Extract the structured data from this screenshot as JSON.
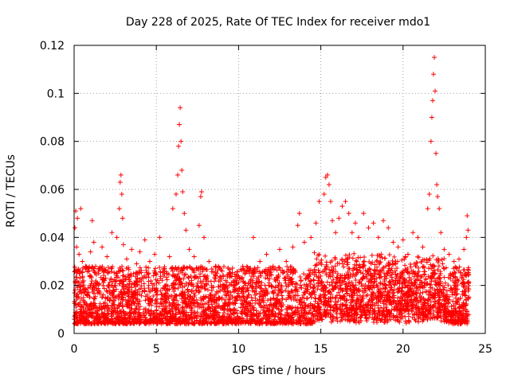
{
  "chart_data": {
    "type": "scatter",
    "title": "Day 228 of 2025, Rate Of TEC Index for receiver mdo1",
    "xlabel": "GPS time / hours",
    "ylabel": "ROTI / TECUs",
    "xlim": [
      0,
      25
    ],
    "ylim": [
      0,
      0.12
    ],
    "xticks": [
      "0",
      "5",
      "10",
      "15",
      "20",
      "25"
    ],
    "yticks": [
      "0",
      "0.02",
      "0.04",
      "0.06",
      "0.08",
      "0.1",
      "0.12"
    ],
    "grid": true,
    "marker": "plus",
    "color": "#ff0000",
    "series": [
      {
        "name": "ROTI",
        "points": [
          [
            0.05,
            0.044
          ],
          [
            0.1,
            0.051
          ],
          [
            0.15,
            0.036
          ],
          [
            0.2,
            0.048
          ],
          [
            0.3,
            0.033
          ],
          [
            0.4,
            0.052
          ],
          [
            0.5,
            0.03
          ],
          [
            0.7,
            0.028
          ],
          [
            1.0,
            0.034
          ],
          [
            1.1,
            0.047
          ],
          [
            1.2,
            0.038
          ],
          [
            1.5,
            0.025
          ],
          [
            1.7,
            0.036
          ],
          [
            2.0,
            0.032
          ],
          [
            2.3,
            0.042
          ],
          [
            2.6,
            0.04
          ],
          [
            2.75,
            0.052
          ],
          [
            2.8,
            0.063
          ],
          [
            2.85,
            0.066
          ],
          [
            2.9,
            0.058
          ],
          [
            2.95,
            0.048
          ],
          [
            3.0,
            0.037
          ],
          [
            3.2,
            0.031
          ],
          [
            3.5,
            0.035
          ],
          [
            3.8,
            0.029
          ],
          [
            4.0,
            0.034
          ],
          [
            4.3,
            0.039
          ],
          [
            4.6,
            0.03
          ],
          [
            4.9,
            0.033
          ],
          [
            5.2,
            0.04
          ],
          [
            5.5,
            0.027
          ],
          [
            5.8,
            0.032
          ],
          [
            6.0,
            0.052
          ],
          [
            6.2,
            0.058
          ],
          [
            6.3,
            0.066
          ],
          [
            6.35,
            0.078
          ],
          [
            6.4,
            0.087
          ],
          [
            6.45,
            0.094
          ],
          [
            6.5,
            0.08
          ],
          [
            6.55,
            0.068
          ],
          [
            6.6,
            0.059
          ],
          [
            6.7,
            0.05
          ],
          [
            6.8,
            0.043
          ],
          [
            7.0,
            0.035
          ],
          [
            7.3,
            0.032
          ],
          [
            7.6,
            0.045
          ],
          [
            7.7,
            0.057
          ],
          [
            7.75,
            0.059
          ],
          [
            7.9,
            0.04
          ],
          [
            8.2,
            0.03
          ],
          [
            8.6,
            0.028
          ],
          [
            9.0,
            0.026
          ],
          [
            9.5,
            0.025
          ],
          [
            10.0,
            0.024
          ],
          [
            10.5,
            0.026
          ],
          [
            10.9,
            0.04
          ],
          [
            11.3,
            0.03
          ],
          [
            11.7,
            0.033
          ],
          [
            12.1,
            0.028
          ],
          [
            12.5,
            0.035
          ],
          [
            12.9,
            0.03
          ],
          [
            13.3,
            0.036
          ],
          [
            13.6,
            0.045
          ],
          [
            13.7,
            0.05
          ],
          [
            14.0,
            0.038
          ],
          [
            14.4,
            0.04
          ],
          [
            14.7,
            0.046
          ],
          [
            14.9,
            0.055
          ],
          [
            15.2,
            0.058
          ],
          [
            15.3,
            0.065
          ],
          [
            15.4,
            0.066
          ],
          [
            15.5,
            0.062
          ],
          [
            15.6,
            0.055
          ],
          [
            15.7,
            0.047
          ],
          [
            15.9,
            0.042
          ],
          [
            16.1,
            0.048
          ],
          [
            16.3,
            0.053
          ],
          [
            16.5,
            0.055
          ],
          [
            16.7,
            0.05
          ],
          [
            16.9,
            0.042
          ],
          [
            17.1,
            0.046
          ],
          [
            17.3,
            0.04
          ],
          [
            17.6,
            0.05
          ],
          [
            17.9,
            0.044
          ],
          [
            18.2,
            0.046
          ],
          [
            18.5,
            0.04
          ],
          [
            18.8,
            0.047
          ],
          [
            19.1,
            0.044
          ],
          [
            19.4,
            0.038
          ],
          [
            19.7,
            0.036
          ],
          [
            20.0,
            0.039
          ],
          [
            20.3,
            0.033
          ],
          [
            20.6,
            0.042
          ],
          [
            20.9,
            0.04
          ],
          [
            21.2,
            0.036
          ],
          [
            21.5,
            0.052
          ],
          [
            21.6,
            0.058
          ],
          [
            21.7,
            0.08
          ],
          [
            21.75,
            0.09
          ],
          [
            21.8,
            0.097
          ],
          [
            21.85,
            0.108
          ],
          [
            21.9,
            0.115
          ],
          [
            21.95,
            0.101
          ],
          [
            22.0,
            0.075
          ],
          [
            22.05,
            0.062
          ],
          [
            22.1,
            0.057
          ],
          [
            22.2,
            0.052
          ],
          [
            22.3,
            0.042
          ],
          [
            22.5,
            0.035
          ],
          [
            22.8,
            0.033
          ],
          [
            23.1,
            0.03
          ],
          [
            23.4,
            0.031
          ],
          [
            23.7,
            0.035
          ],
          [
            23.85,
            0.04
          ],
          [
            23.9,
            0.049
          ],
          [
            23.95,
            0.043
          ]
        ]
      }
    ]
  }
}
